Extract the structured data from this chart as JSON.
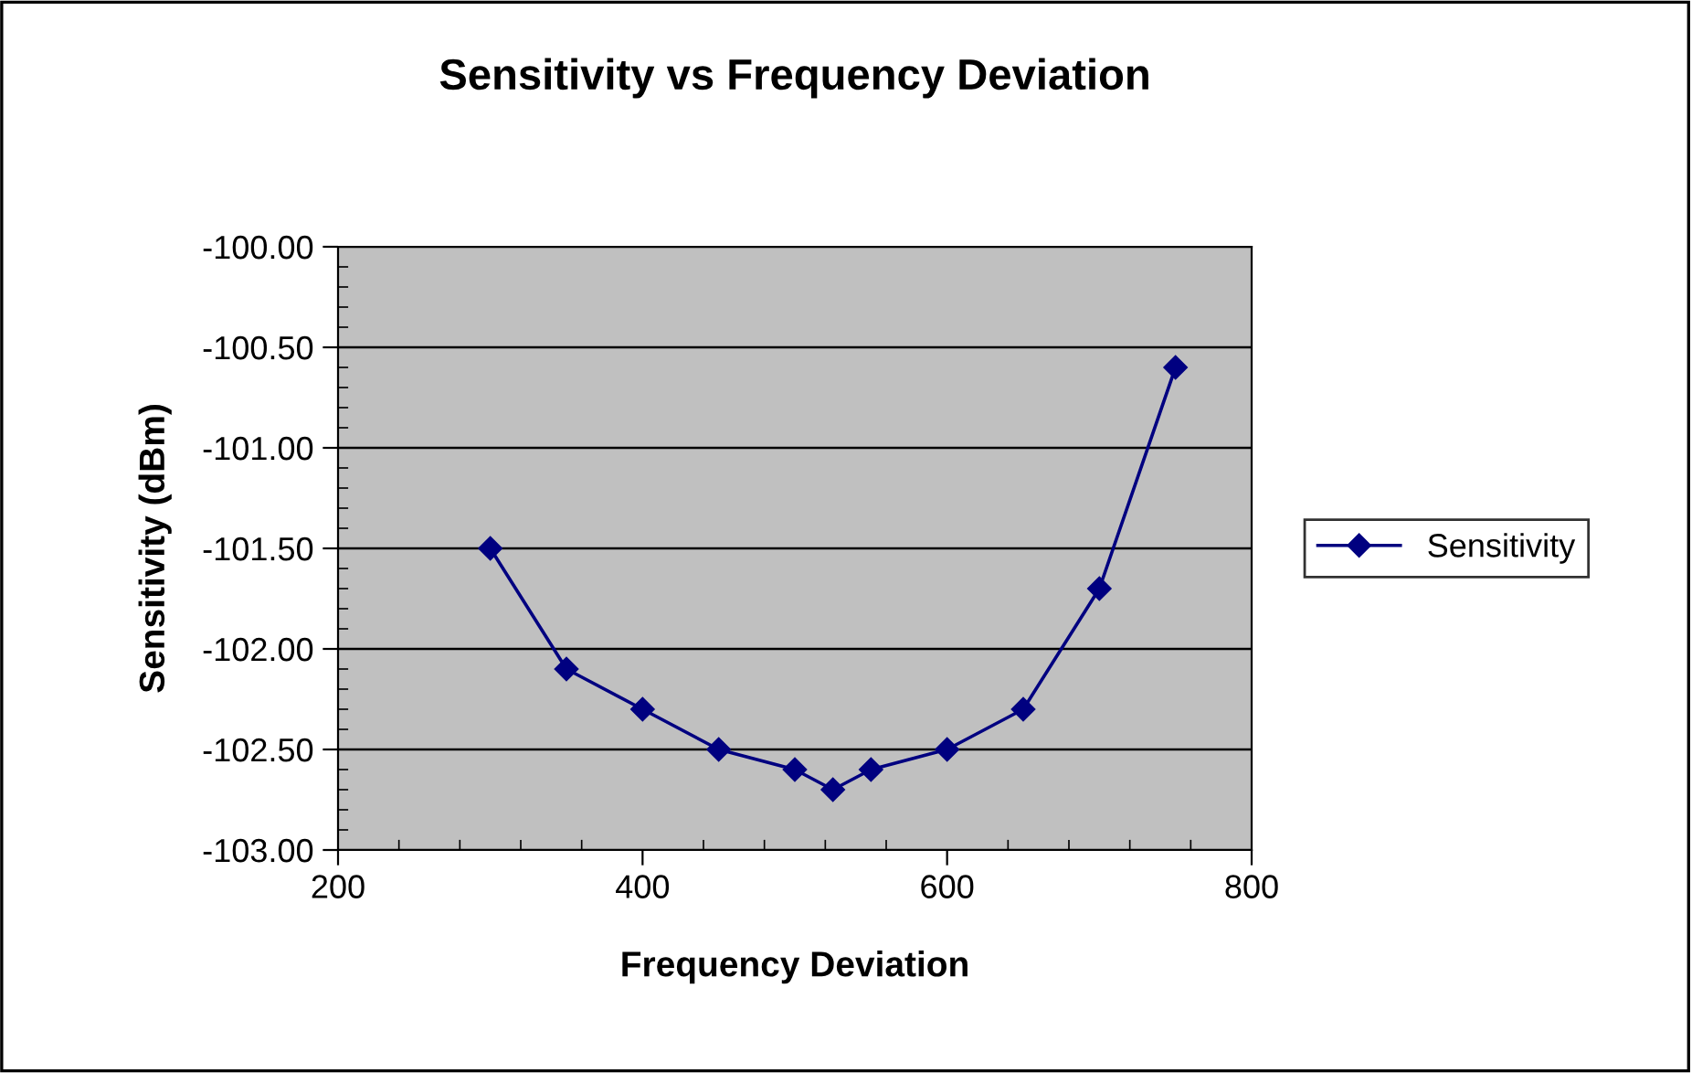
{
  "chart_data": {
    "type": "line",
    "title": "Sensitivity vs Frequency Deviation",
    "xlabel": "Frequency Deviation",
    "ylabel": "Sensitivity (dBm)",
    "x": [
      300,
      350,
      400,
      450,
      500,
      525,
      550,
      600,
      650,
      700,
      750
    ],
    "series": [
      {
        "name": "Sensitivity",
        "color": "#000080",
        "values": [
          -101.5,
          -102.1,
          -102.3,
          -102.5,
          -102.6,
          -102.7,
          -102.6,
          -102.5,
          -102.3,
          -101.7,
          -100.6
        ]
      }
    ],
    "xlim": [
      200,
      800
    ],
    "xticks": [
      200,
      400,
      600,
      800
    ],
    "ylim": [
      -103,
      -100
    ],
    "yticks": [
      {
        "value": -103,
        "label": "-103.00"
      },
      {
        "value": -102.5,
        "label": "-102.50"
      },
      {
        "value": -102,
        "label": "-102.00"
      },
      {
        "value": -101.5,
        "label": "-101.50"
      },
      {
        "value": -101,
        "label": "-101.00"
      },
      {
        "value": -100.5,
        "label": "-100.50"
      },
      {
        "value": -100,
        "label": "-100.00"
      }
    ],
    "grid": "y",
    "legend": "right",
    "marker": "diamond",
    "line_style": "solid"
  }
}
